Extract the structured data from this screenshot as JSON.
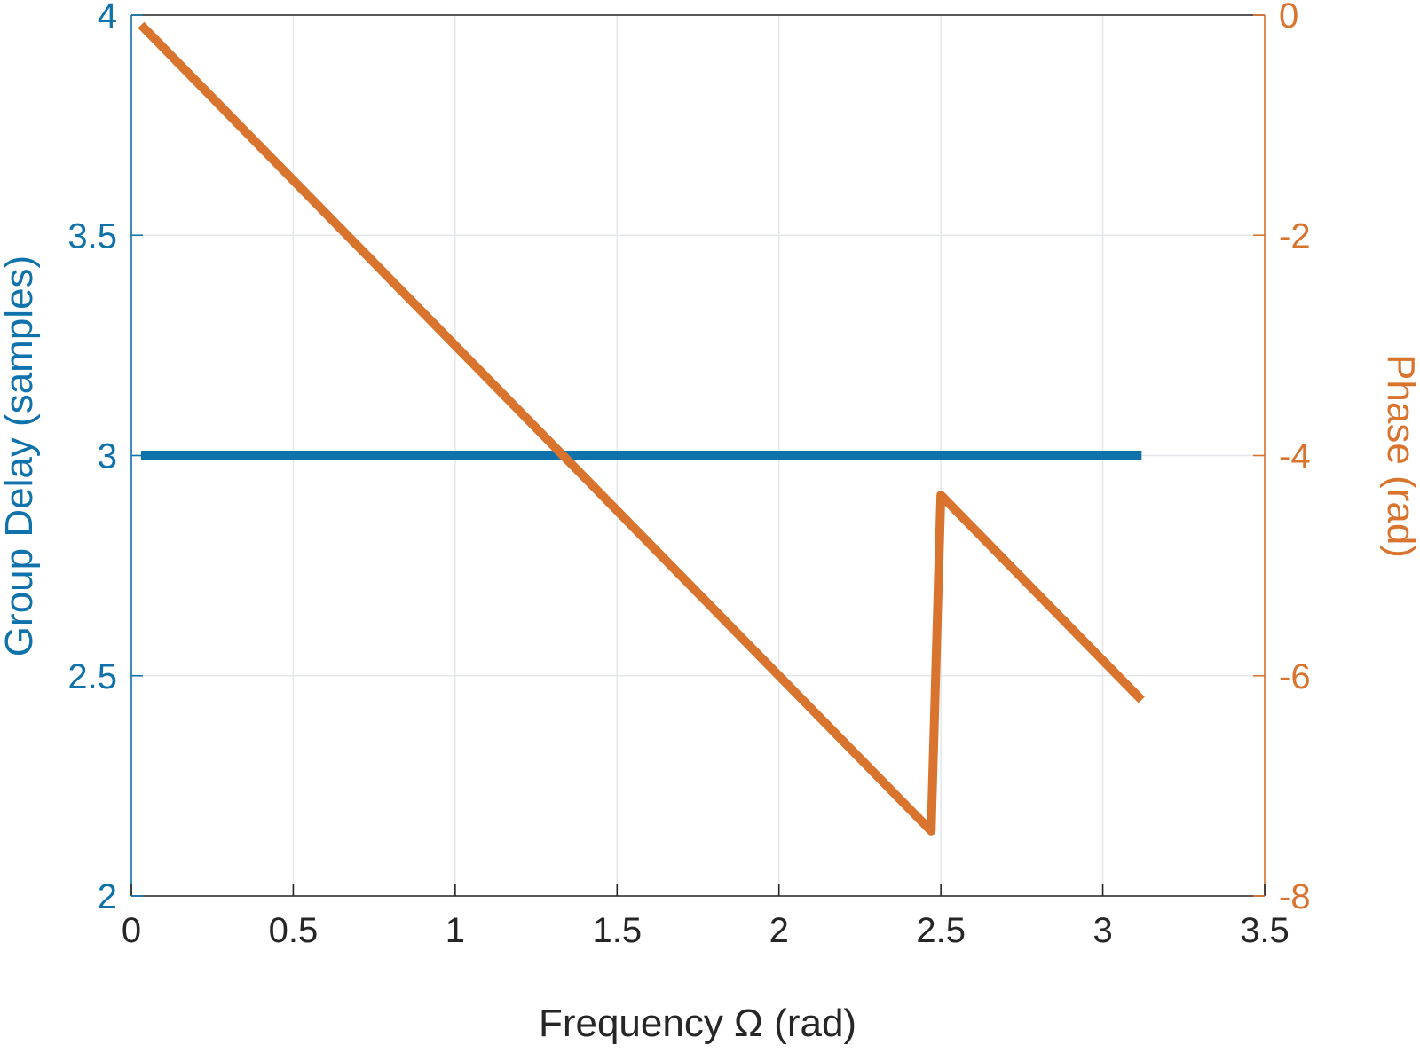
{
  "chart_data": {
    "type": "line",
    "title": "",
    "xlabel": "Frequency Ω (rad)",
    "xlim": [
      0,
      3.5
    ],
    "x_tick_values": [
      0,
      0.5,
      1,
      1.5,
      2,
      2.5,
      3,
      3.5
    ],
    "x_tick_labels": [
      "0",
      "0.5",
      "1",
      "1.5",
      "2",
      "2.5",
      "3",
      "3.5"
    ],
    "grid": true,
    "grid_color": "#e4e7ea",
    "frame_color": "#262626",
    "left_axis": {
      "label": "Group Delay (samples)",
      "ylim": [
        2,
        4
      ],
      "tick_values": [
        2,
        2.5,
        3,
        3.5,
        4
      ],
      "tick_labels": [
        "2",
        "2.5",
        "3",
        "3.5",
        "4"
      ],
      "color": "#1072ab"
    },
    "right_axis": {
      "label": "Phase (rad)",
      "ylim": [
        -8,
        0
      ],
      "tick_values": [
        -8,
        -6,
        -4,
        -2,
        0
      ],
      "tick_labels": [
        "-8",
        "-6",
        "-4",
        "-2",
        "0"
      ],
      "color": "#d9742f"
    },
    "legend": "none",
    "series": [
      {
        "name": "Group Delay",
        "slug": "group-delay-line",
        "axis": "left",
        "color": "#1072ab",
        "linewidth": 11,
        "points": [
          [
            0.03,
            3.0
          ],
          [
            3.12,
            3.0
          ]
        ]
      },
      {
        "name": "Phase",
        "slug": "phase-line",
        "axis": "right",
        "color": "#d9742f",
        "linewidth": 10,
        "points": [
          [
            0.03,
            -0.09
          ],
          [
            2.47,
            -7.41
          ],
          [
            2.5,
            -4.36
          ],
          [
            3.12,
            -6.22
          ]
        ]
      }
    ]
  }
}
